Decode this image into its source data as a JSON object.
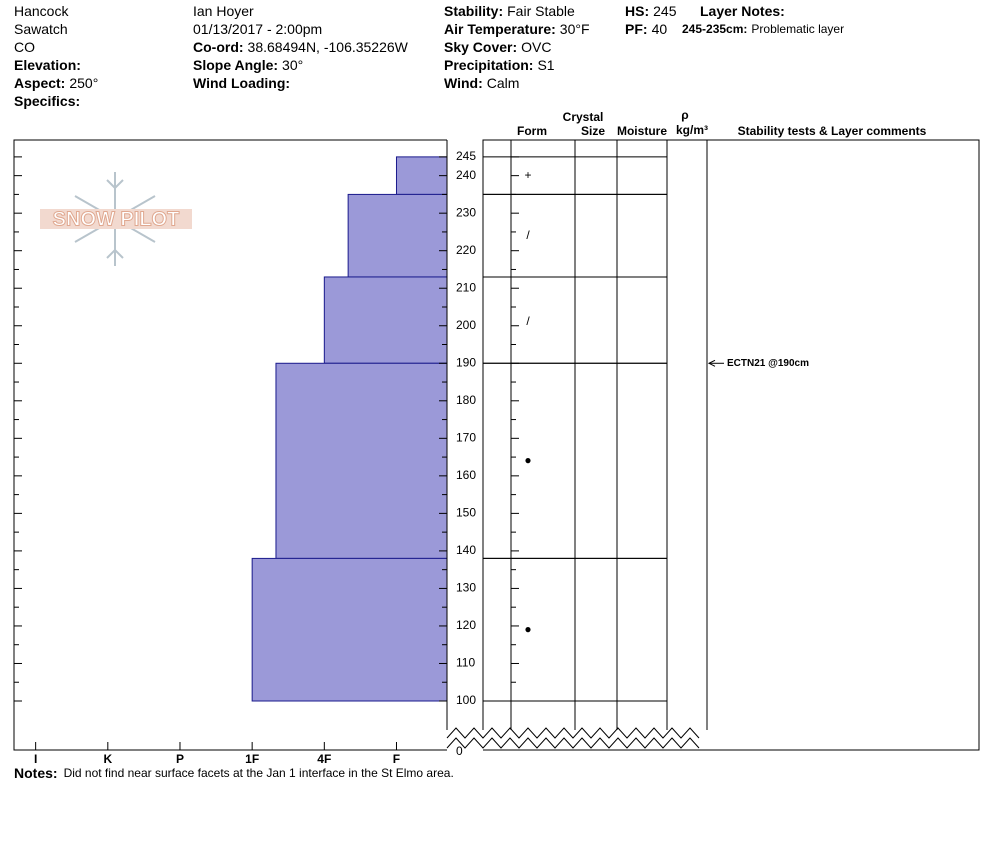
{
  "header": {
    "columns": [
      [
        {
          "value": "Hancock"
        },
        {
          "value": "Sawatch"
        },
        {
          "value": "CO"
        },
        {
          "label": "Elevation:"
        },
        {
          "label": "Aspect:",
          "value": "250°"
        },
        {
          "label": "Specifics:"
        }
      ],
      [
        {
          "value": "Ian Hoyer"
        },
        {
          "value": "01/13/2017 - 2:00pm"
        },
        {
          "label": "Co-ord:",
          "value": "38.68494N, -106.35226W"
        },
        {
          "label": "Slope Angle:",
          "value": "30°"
        },
        {
          "label": "Wind Loading:"
        }
      ],
      [
        {
          "label": "Stability:",
          "value": "Fair Stable"
        },
        {
          "label": "Air Temperature:",
          "value": "30°F"
        },
        {
          "label": "Sky Cover:",
          "value": "OVC"
        },
        {
          "label": "Precipitation:",
          "value": "S1"
        },
        {
          "label": "Wind:",
          "value": "Calm"
        }
      ],
      [
        {
          "label": "HS:",
          "value": "245"
        },
        {
          "label": "PF:",
          "value": "40"
        }
      ],
      [
        {
          "label": "Layer Notes:"
        },
        {
          "label": "245-235cm:",
          "value": "Problematic layer"
        }
      ]
    ]
  },
  "logo": "SNOW PILOT",
  "chart_data": {
    "type": "hardness-profile",
    "ylim": [
      100,
      249.5
    ],
    "yticks": [
      100,
      110,
      120,
      130,
      140,
      150,
      160,
      170,
      180,
      190,
      200,
      210,
      220,
      230,
      240,
      245
    ],
    "minor_yticks": [
      105,
      115,
      125,
      135,
      145,
      155,
      165,
      175,
      185,
      195,
      205,
      215,
      225,
      235
    ],
    "base_label": 0,
    "xlim": [
      6.3,
      0.3
    ],
    "xticks": [
      {
        "value": 6,
        "label": "I"
      },
      {
        "value": 5,
        "label": "K"
      },
      {
        "value": 4,
        "label": "P"
      },
      {
        "value": 3,
        "label": "1F"
      },
      {
        "value": 2,
        "label": "4F"
      },
      {
        "value": 1,
        "label": "F"
      }
    ],
    "color": "#9b99d8",
    "layers": [
      {
        "top": 245,
        "bottom": 235,
        "hardness": 1
      },
      {
        "top": 235,
        "bottom": 213,
        "hardness": 1.67
      },
      {
        "top": 213,
        "bottom": 190,
        "hardness": 2
      },
      {
        "top": 190,
        "bottom": 138,
        "hardness": 2.67
      },
      {
        "top": 138,
        "bottom": 100,
        "hardness": 3
      }
    ],
    "column_headers": {
      "crystal": "Crystal",
      "form": "Form",
      "size": "Size",
      "moisture": "Moisture",
      "rho": "ρ",
      "density": "kg/m³",
      "stability": "Stability tests & Layer comments"
    },
    "crystal_forms": [
      {
        "depth": 240,
        "symbol": "+"
      },
      {
        "depth": 224,
        "symbol": "/"
      },
      {
        "depth": 201,
        "symbol": "/"
      },
      {
        "depth": 164,
        "symbol": "●"
      },
      {
        "depth": 119,
        "symbol": "●"
      }
    ],
    "stability_tests": [
      {
        "depth": 190,
        "text": "ECTN21 @190cm"
      }
    ]
  },
  "notes": {
    "label": "Notes:",
    "text": "Did not find near surface facets at the Jan 1 interface in the St Elmo area."
  }
}
